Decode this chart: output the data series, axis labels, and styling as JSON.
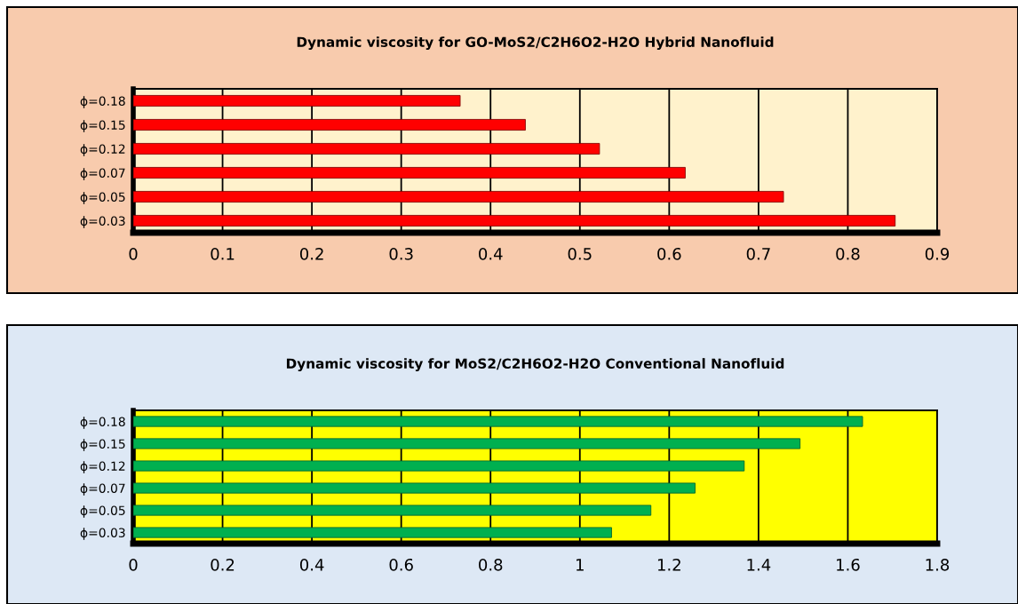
{
  "chart_data": [
    {
      "type": "bar",
      "orientation": "horizontal",
      "title": "Dynamic viscosity for GO-MoS2/C2H6O2-H2O Hybrid Nanofluid",
      "categories": [
        "ϕ=0.18",
        "ϕ=0.15",
        "ϕ=0.12",
        "ϕ=0.07",
        "ϕ=0.05",
        "ϕ=0.03"
      ],
      "values": [
        0.366,
        0.439,
        0.522,
        0.618,
        0.728,
        0.853
      ],
      "color": "#ff0000",
      "xlim": [
        0,
        0.9
      ],
      "xticks": [
        0,
        0.1,
        0.2,
        0.3,
        0.4,
        0.5,
        0.6,
        0.7,
        0.8,
        0.9
      ],
      "grid": "x"
    },
    {
      "type": "bar",
      "orientation": "horizontal",
      "title": "Dynamic viscosity for MoS2/C2H6O2-H2O Conventional Nanofluid",
      "categories": [
        "ϕ=0.18",
        "ϕ=0.15",
        "ϕ=0.12",
        "ϕ=0.07",
        "ϕ=0.05",
        "ϕ=0.03"
      ],
      "values": [
        1.633,
        1.493,
        1.368,
        1.258,
        1.159,
        1.071
      ],
      "color": "#00b050",
      "xlim": [
        0,
        1.8
      ],
      "xticks": [
        0,
        0.2,
        0.4,
        0.6,
        0.8,
        1,
        1.2,
        1.4,
        1.6,
        1.8
      ],
      "grid": "x"
    }
  ]
}
